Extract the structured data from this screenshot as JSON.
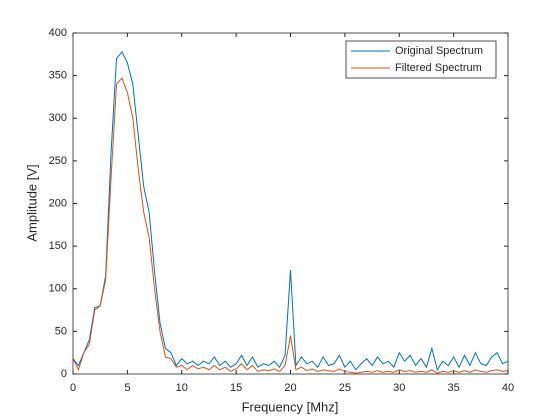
{
  "chart_data": {
    "type": "line",
    "xlabel": "Frequency [Mhz]",
    "ylabel": "Amplitude [V]",
    "x": [
      0,
      0.5,
      1,
      1.5,
      2,
      2.5,
      3,
      3.5,
      4,
      4.5,
      5,
      5.5,
      6,
      6.5,
      7,
      7.5,
      8,
      8.5,
      9,
      9.5,
      10,
      10.5,
      11,
      11.5,
      12,
      12.5,
      13,
      13.5,
      14,
      14.5,
      15,
      15.5,
      16,
      16.5,
      17,
      17.5,
      18,
      18.5,
      19,
      19.5,
      20,
      20.5,
      21,
      21.5,
      22,
      22.5,
      23,
      23.5,
      24,
      24.5,
      25,
      25.5,
      26,
      26.5,
      27,
      27.5,
      28,
      28.5,
      29,
      29.5,
      30,
      30.5,
      31,
      31.5,
      32,
      32.5,
      33,
      33.5,
      34,
      34.5,
      35,
      35.5,
      36,
      36.5,
      37,
      37.5,
      38,
      38.5,
      39,
      39.5,
      40
    ],
    "series": [
      {
        "name": "Original Spectrum",
        "color": "#0072bd",
        "values": [
          18,
          10,
          25,
          40,
          78,
          80,
          115,
          260,
          370,
          378,
          365,
          340,
          280,
          220,
          190,
          120,
          60,
          30,
          25,
          10,
          18,
          12,
          15,
          10,
          15,
          12,
          20,
          10,
          15,
          8,
          12,
          22,
          10,
          20,
          8,
          12,
          10,
          15,
          8,
          22,
          122,
          10,
          20,
          12,
          15,
          8,
          20,
          10,
          12,
          22,
          8,
          15,
          5,
          12,
          18,
          10,
          20,
          12,
          15,
          8,
          25,
          15,
          22,
          10,
          18,
          8,
          30,
          5,
          15,
          10,
          20,
          8,
          22,
          10,
          25,
          12,
          10,
          20,
          25,
          12,
          15
        ]
      },
      {
        "name": "Filtered Spectrum",
        "color": "#d95319",
        "values": [
          18,
          5,
          25,
          35,
          75,
          80,
          110,
          230,
          340,
          347,
          330,
          300,
          240,
          190,
          160,
          100,
          50,
          20,
          18,
          8,
          10,
          5,
          10,
          6,
          8,
          5,
          10,
          5,
          8,
          3,
          6,
          12,
          5,
          10,
          3,
          5,
          4,
          6,
          3,
          10,
          45,
          5,
          8,
          4,
          6,
          3,
          5,
          4,
          3,
          6,
          3,
          2,
          1,
          2,
          3,
          2,
          4,
          2,
          3,
          2,
          5,
          3,
          4,
          2,
          3,
          2,
          5,
          1,
          3,
          2,
          4,
          2,
          4,
          2,
          5,
          3,
          2,
          4,
          5,
          3,
          4
        ]
      }
    ],
    "xlim": [
      0,
      40
    ],
    "xticks": [
      0,
      5,
      10,
      15,
      20,
      25,
      30,
      35,
      40
    ],
    "ylim": [
      0,
      400
    ],
    "yticks": [
      0,
      50,
      100,
      150,
      200,
      250,
      300,
      350,
      400
    ],
    "legend": "northeast",
    "grid": false
  }
}
